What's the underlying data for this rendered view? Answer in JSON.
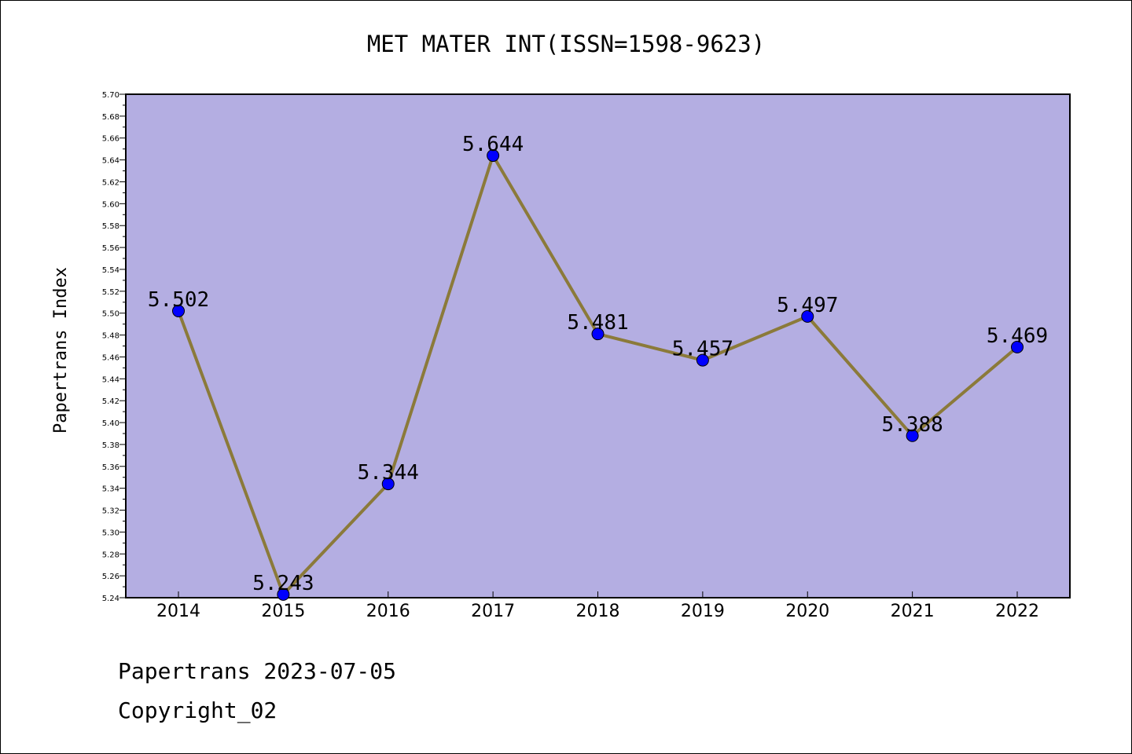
{
  "chart_data": {
    "type": "line",
    "title": "MET MATER INT(ISSN=1598-9623)",
    "ylabel": "Papertrans Index",
    "xlabel": "",
    "categories": [
      "2014",
      "2015",
      "2016",
      "2017",
      "2018",
      "2019",
      "2020",
      "2021",
      "2022"
    ],
    "values": [
      5.502,
      5.243,
      5.344,
      5.644,
      5.481,
      5.457,
      5.497,
      5.388,
      5.469
    ],
    "data_labels": [
      "5.502",
      "5.243",
      "5.344",
      "5.644",
      "5.481",
      "5.457",
      "5.497",
      "5.388",
      "5.469"
    ],
    "ylim": [
      5.24,
      5.7
    ],
    "yticks": [
      "5.24",
      "5.26",
      "5.28",
      "5.30",
      "5.32",
      "5.34",
      "5.36",
      "5.38",
      "5.40",
      "5.42",
      "5.44",
      "5.46",
      "5.48",
      "5.50",
      "5.52",
      "5.54",
      "5.56",
      "5.58",
      "5.60",
      "5.62",
      "5.64",
      "5.66",
      "5.68",
      "5.70"
    ],
    "grid": false,
    "legend": "none",
    "colors": {
      "plot_background": "#b4aee2",
      "line": "#8b7a3a",
      "marker": "#0000ff"
    }
  },
  "footer": {
    "line1": "Papertrans 2023-07-05",
    "line2": "Copyright_02"
  }
}
